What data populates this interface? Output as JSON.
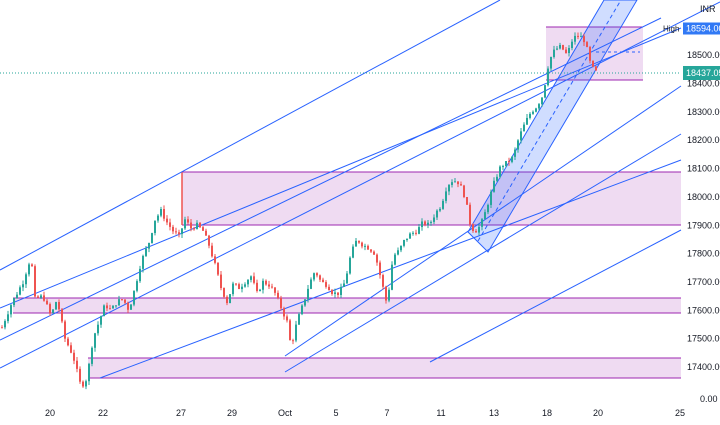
{
  "chart_data": {
    "type": "candlestick",
    "currency_label": "INR",
    "high_label": "High",
    "high_value": "18594.00",
    "last_price": "18437.05",
    "ylim": [
      17300,
      18650
    ],
    "y_ticks": [
      {
        "value": 18500,
        "label": "18500.00"
      },
      {
        "value": 18400,
        "label": "18400.00"
      },
      {
        "value": 18300,
        "label": "18300.00"
      },
      {
        "value": 18200,
        "label": "18200.00"
      },
      {
        "value": 18100,
        "label": "18100.00"
      },
      {
        "value": 18000,
        "label": "18000.00"
      },
      {
        "value": 17900,
        "label": "17900.00"
      },
      {
        "value": 17800,
        "label": "17800.00"
      },
      {
        "value": 17700,
        "label": "17700.00"
      },
      {
        "value": 17600,
        "label": "17600.00"
      },
      {
        "value": 17500,
        "label": "17500.00"
      },
      {
        "value": 17400,
        "label": "17400.00"
      }
    ],
    "y_bottom_label": "0.00",
    "x_ticks": [
      "20",
      "22",
      "27",
      "29",
      "Oct",
      "5",
      "7",
      "11",
      "13",
      "18",
      "20",
      "25"
    ],
    "colors": {
      "up": "#26a69a",
      "down": "#ef5350",
      "channel": "#2962ff",
      "zone_fill": "#e1bee7",
      "zone_border": "#9c27b0",
      "last_price_tag": "#26a69a",
      "high_tag": "#3179f5"
    },
    "waypoints": [
      [
        1,
        17540
      ],
      [
        10,
        17620
      ],
      [
        22,
        17700
      ],
      [
        30,
        17790
      ],
      [
        34,
        17640
      ],
      [
        42,
        17650
      ],
      [
        50,
        17580
      ],
      [
        56,
        17640
      ],
      [
        64,
        17500
      ],
      [
        72,
        17440
      ],
      [
        80,
        17330
      ],
      [
        86,
        17360
      ],
      [
        92,
        17500
      ],
      [
        98,
        17560
      ],
      [
        104,
        17620
      ],
      [
        110,
        17600
      ],
      [
        116,
        17630
      ],
      [
        122,
        17640
      ],
      [
        128,
        17600
      ],
      [
        134,
        17680
      ],
      [
        140,
        17770
      ],
      [
        148,
        17840
      ],
      [
        154,
        17920
      ],
      [
        160,
        17950
      ],
      [
        166,
        17910
      ],
      [
        172,
        17880
      ],
      [
        178,
        17860
      ],
      [
        184,
        17920
      ],
      [
        190,
        17890
      ],
      [
        196,
        17900
      ],
      [
        202,
        17880
      ],
      [
        208,
        17830
      ],
      [
        214,
        17760
      ],
      [
        220,
        17680
      ],
      [
        226,
        17630
      ],
      [
        232,
        17690
      ],
      [
        238,
        17680
      ],
      [
        244,
        17700
      ],
      [
        250,
        17720
      ],
      [
        256,
        17660
      ],
      [
        262,
        17700
      ],
      [
        268,
        17690
      ],
      [
        274,
        17660
      ],
      [
        280,
        17610
      ],
      [
        286,
        17560
      ],
      [
        290,
        17470
      ],
      [
        296,
        17560
      ],
      [
        302,
        17620
      ],
      [
        308,
        17690
      ],
      [
        314,
        17740
      ],
      [
        320,
        17700
      ],
      [
        326,
        17690
      ],
      [
        332,
        17660
      ],
      [
        338,
        17660
      ],
      [
        344,
        17700
      ],
      [
        350,
        17800
      ],
      [
        356,
        17850
      ],
      [
        362,
        17830
      ],
      [
        368,
        17820
      ],
      [
        374,
        17800
      ],
      [
        380,
        17710
      ],
      [
        386,
        17620
      ],
      [
        392,
        17790
      ],
      [
        398,
        17810
      ],
      [
        404,
        17850
      ],
      [
        410,
        17870
      ],
      [
        416,
        17880
      ],
      [
        422,
        17910
      ],
      [
        428,
        17900
      ],
      [
        434,
        17940
      ],
      [
        440,
        17970
      ],
      [
        446,
        18040
      ],
      [
        452,
        18060
      ],
      [
        458,
        18050
      ],
      [
        464,
        18000
      ],
      [
        470,
        17890
      ],
      [
        476,
        17880
      ],
      [
        482,
        17920
      ],
      [
        488,
        17990
      ],
      [
        494,
        18060
      ],
      [
        500,
        18110
      ],
      [
        506,
        18120
      ],
      [
        512,
        18140
      ],
      [
        518,
        18210
      ],
      [
        524,
        18260
      ],
      [
        530,
        18300
      ],
      [
        536,
        18320
      ],
      [
        542,
        18360
      ],
      [
        548,
        18480
      ],
      [
        554,
        18520
      ],
      [
        560,
        18530
      ],
      [
        566,
        18500
      ],
      [
        572,
        18560
      ],
      [
        578,
        18570
      ],
      [
        584,
        18550
      ],
      [
        590,
        18460
      ],
      [
        596,
        18437
      ]
    ]
  }
}
